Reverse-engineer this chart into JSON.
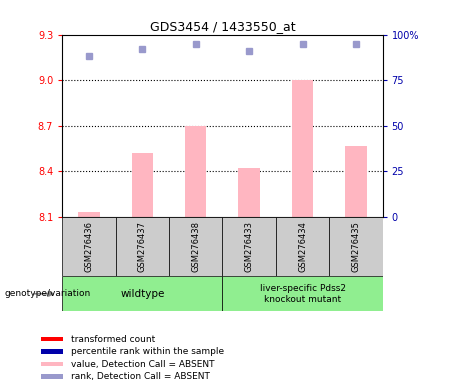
{
  "title": "GDS3454 / 1433550_at",
  "samples": [
    "GSM276436",
    "GSM276437",
    "GSM276438",
    "GSM276433",
    "GSM276434",
    "GSM276435"
  ],
  "bar_values": [
    8.13,
    8.52,
    8.7,
    8.42,
    9.0,
    8.57
  ],
  "rank_values": [
    88,
    92,
    95,
    91,
    95,
    95
  ],
  "ylim_left": [
    8.1,
    9.3
  ],
  "ylim_right": [
    0,
    100
  ],
  "yticks_left": [
    8.1,
    8.4,
    8.7,
    9.0,
    9.3
  ],
  "yticks_right": [
    0,
    25,
    50,
    75,
    100
  ],
  "hlines": [
    9.0,
    8.7,
    8.4
  ],
  "bar_color": "#FFB6C1",
  "rank_color": "#9999CC",
  "bar_width": 0.4,
  "legend_colors": [
    "#FF0000",
    "#0000AA",
    "#FFB6C1",
    "#9999CC"
  ],
  "legend_labels": [
    "transformed count",
    "percentile rank within the sample",
    "value, Detection Call = ABSENT",
    "rank, Detection Call = ABSENT"
  ],
  "genotype_label": "genotype/variation",
  "tick_color_left": "#FF0000",
  "tick_color_right": "#0000AA",
  "wildtype_color": "#90EE90",
  "knockout_color": "#90EE90",
  "sample_box_color": "#CCCCCC"
}
